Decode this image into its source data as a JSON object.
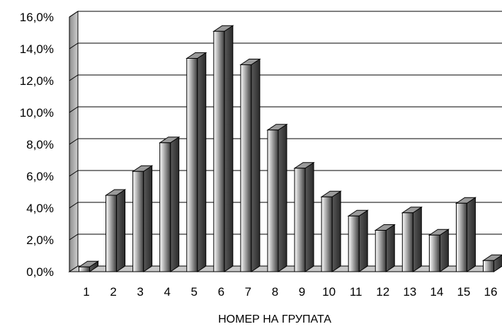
{
  "chart_data": {
    "type": "bar",
    "title": "",
    "xlabel": "НОМЕР НА ГРУПАТА",
    "ylabel": "",
    "categories": [
      "1",
      "2",
      "3",
      "4",
      "5",
      "6",
      "7",
      "8",
      "9",
      "10",
      "11",
      "12",
      "13",
      "14",
      "15",
      "16"
    ],
    "values": [
      0.3,
      4.8,
      6.3,
      8.1,
      13.4,
      15.1,
      13.0,
      8.9,
      6.5,
      4.7,
      3.5,
      2.6,
      3.7,
      2.3,
      4.3,
      0.7
    ],
    "ylim": [
      0,
      16
    ],
    "y_ticks": [
      "0,0%",
      "2,0%",
      "4,0%",
      "6,0%",
      "8,0%",
      "10,0%",
      "12,0%",
      "14,0%",
      "16,0%"
    ],
    "grid": true,
    "legend": "none",
    "style": "3d-column",
    "colors": {
      "bar_light": "#ffffff",
      "bar_dark": "#3a3a3a",
      "wall": "#b0b0b0",
      "gridline": "#000000"
    }
  }
}
